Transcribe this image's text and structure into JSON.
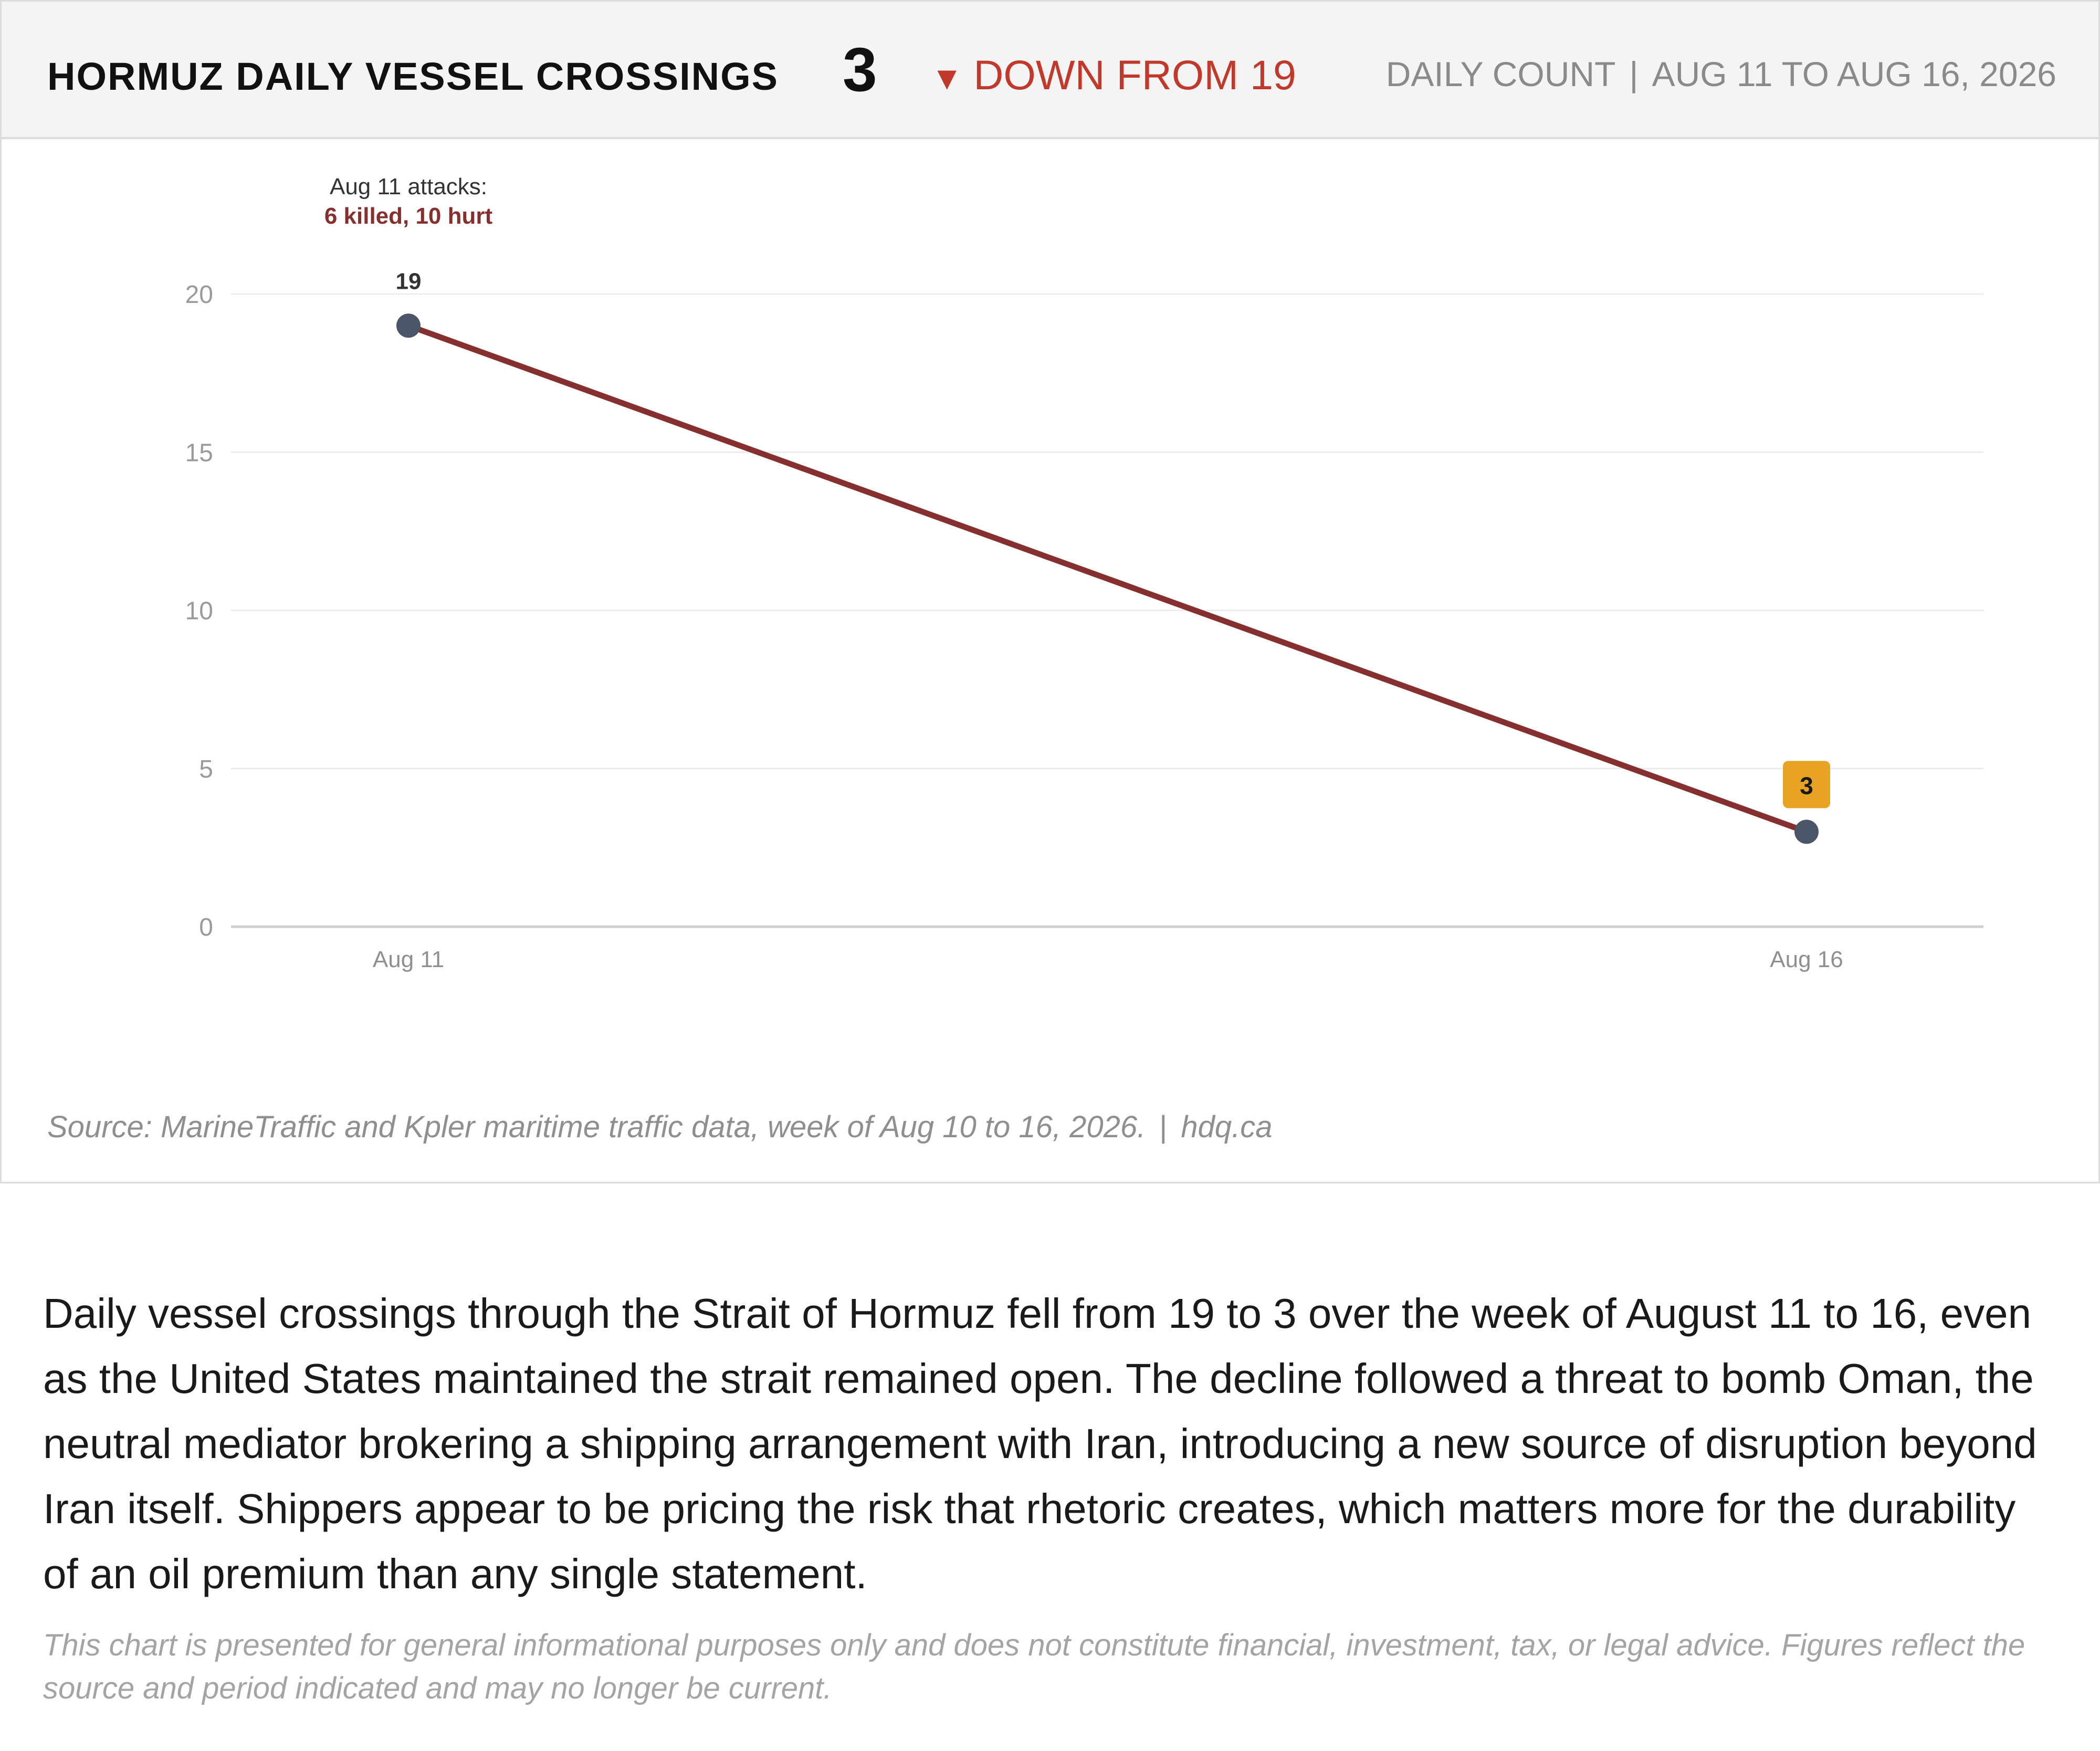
{
  "header": {
    "title": "HORMUZ DAILY VESSEL CROSSINGS",
    "current_value": "3",
    "change_icon": "down-triangle-icon",
    "change_glyph": "▼",
    "change_text": "DOWN FROM 19",
    "metric": "DAILY COUNT",
    "separator": "|",
    "date_range": "AUG 11 TO AUG 16, 2026"
  },
  "colors": {
    "line": "#862f2f",
    "point": "#4a5568",
    "highlight_badge": "#e8a325",
    "change_red": "#c0392b",
    "annotation_red": "#862f2f"
  },
  "chart_data": {
    "type": "line",
    "categories": [
      "Aug 11",
      "Aug 16"
    ],
    "values": [
      19,
      3
    ],
    "data_labels": [
      "19",
      "3"
    ],
    "highlight_last_point": true,
    "ylim": [
      0,
      20
    ],
    "yticks": [
      0,
      5,
      10,
      15,
      20
    ],
    "ytick_labels": [
      "0",
      "5",
      "10",
      "15",
      "20"
    ],
    "grid": true,
    "xlabel": "",
    "ylabel": "",
    "annotation": {
      "category": "Aug 11",
      "line1": "Aug 11 attacks:",
      "line2": "6 killed, 10 hurt"
    }
  },
  "source": {
    "text": "Source: MarineTraffic and Kpler maritime traffic data, week of Aug 10 to 16, 2026.",
    "separator": "|",
    "site": "hdq.ca"
  },
  "body": {
    "paragraph": "Daily vessel crossings through the Strait of Hormuz fell from 19 to 3 over the week of August 11 to 16, even as the United States maintained the strait remained open. The decline followed a threat to bomb Oman, the neutral mediator brokering a shipping arrangement with Iran, introducing a new source of disruption beyond Iran itself. Shippers appear to be pricing the risk that rhetoric creates, which matters more for the durability of an oil premium than any single statement."
  },
  "disclaimer": {
    "text": "This chart is presented for general informational purposes only and does not constitute financial, investment, tax, or legal advice. Figures reflect the source and period indicated and may no longer be current."
  }
}
